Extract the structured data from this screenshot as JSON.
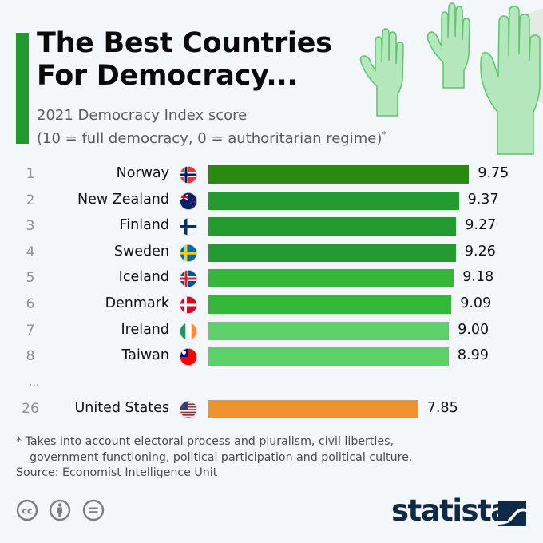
{
  "header": {
    "title_line1": "The Best Countries",
    "title_line2": "For Democracy...",
    "subtitle_line1": "2021 Democracy Index score",
    "subtitle_line2": "(10 = full democracy, 0 = authoritarian regime)",
    "subtitle_marker": "*",
    "accent_color": "#23982f"
  },
  "chart_data": {
    "type": "bar",
    "orientation": "horizontal",
    "title": "The Best Countries For Democracy...",
    "subtitle": "2021 Democracy Index score (10 = full democracy, 0 = authoritarian regime)*",
    "xlabel": "",
    "ylabel": "",
    "xlim": [
      0,
      10
    ],
    "grid": false,
    "rows": [
      {
        "rank": "1",
        "country": "Norway",
        "flag": "norway-flag",
        "value": 9.75,
        "label": "9.75",
        "color": "#2a8a10"
      },
      {
        "rank": "2",
        "country": "New Zealand",
        "flag": "new-zealand-flag",
        "value": 9.37,
        "label": "9.37",
        "color": "#249b31"
      },
      {
        "rank": "3",
        "country": "Finland",
        "flag": "finland-flag",
        "value": 9.27,
        "label": "9.27",
        "color": "#249b31"
      },
      {
        "rank": "4",
        "country": "Sweden",
        "flag": "sweden-flag",
        "value": 9.26,
        "label": "9.26",
        "color": "#249b31"
      },
      {
        "rank": "5",
        "country": "Iceland",
        "flag": "iceland-flag",
        "value": 9.18,
        "label": "9.18",
        "color": "#35b73a"
      },
      {
        "rank": "6",
        "country": "Denmark",
        "flag": "denmark-flag",
        "value": 9.09,
        "label": "9.09",
        "color": "#35b73a"
      },
      {
        "rank": "7",
        "country": "Ireland",
        "flag": "ireland-flag",
        "value": 9.0,
        "label": "9.00",
        "color": "#5dd06a"
      },
      {
        "rank": "8",
        "country": "Taiwan",
        "flag": "taiwan-flag",
        "value": 8.99,
        "label": "8.99",
        "color": "#5dd06a"
      },
      {
        "rank": "26",
        "country": "United States",
        "flag": "united-states-flag",
        "value": 7.85,
        "label": "7.85",
        "color": "#f0922e"
      }
    ],
    "gap_marker": "..."
  },
  "footer": {
    "footnote_line1": "* Takes into account electoral process and pluralism, civil liberties,",
    "footnote_line2": "government functioning, political participation and political culture.",
    "source": "Source: Economist Intelligence Unit",
    "license_icons": [
      "creative-commons-icon",
      "attribution-icon",
      "no-derivatives-icon"
    ],
    "brand": "statista",
    "brand_color": "#0e2a47"
  }
}
